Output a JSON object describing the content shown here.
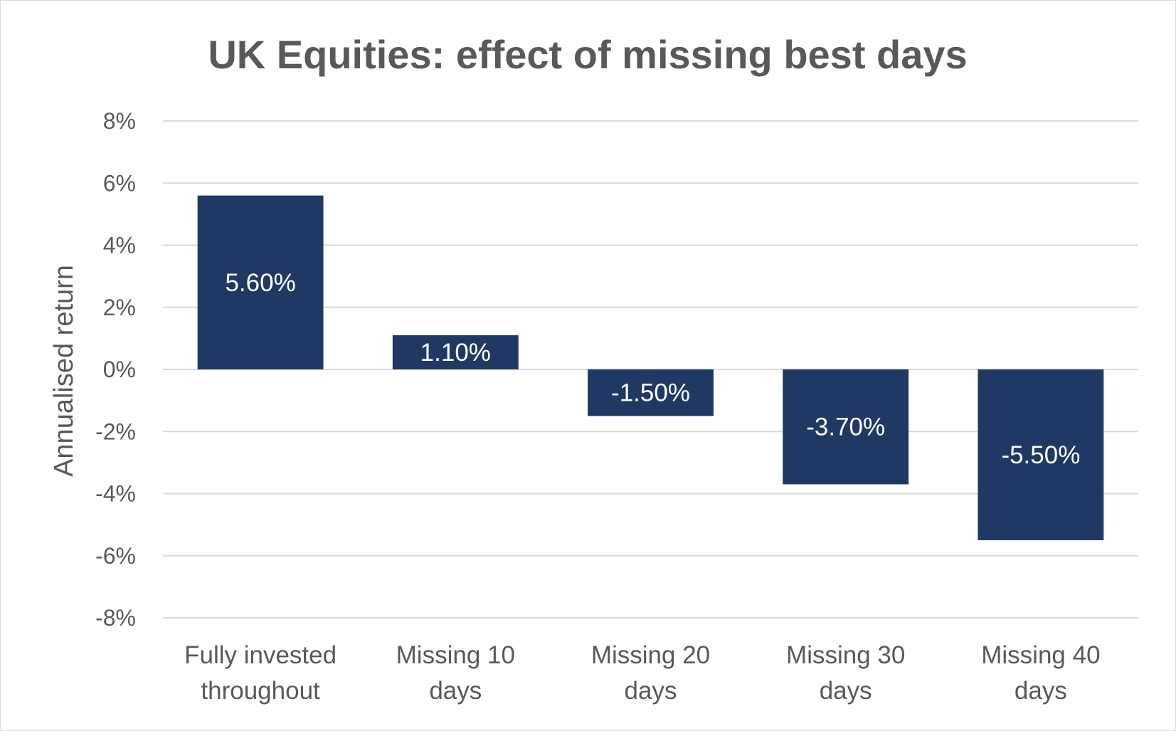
{
  "chart_data": {
    "type": "bar",
    "title": "UK Equities: effect of missing best days",
    "xlabel": "",
    "ylabel": "Annualised return",
    "categories": [
      [
        "Fully invested",
        "throughout"
      ],
      [
        "Missing 10",
        "days"
      ],
      [
        "Missing 20",
        "days"
      ],
      [
        "Missing 30",
        "days"
      ],
      [
        "Missing 40",
        "days"
      ]
    ],
    "values": [
      5.6,
      1.1,
      -1.5,
      -3.7,
      -5.5
    ],
    "data_labels": [
      "5.60%",
      "1.10%",
      "-1.50%",
      "-3.70%",
      "-5.50%"
    ],
    "y_ticks": [
      8,
      6,
      4,
      2,
      0,
      -2,
      -4,
      -6,
      -8
    ],
    "y_tick_labels": [
      "8%",
      "6%",
      "4%",
      "2%",
      "0%",
      "-2%",
      "-4%",
      "-6%",
      "-8%"
    ],
    "ylim": [
      -8,
      8
    ],
    "grid": true,
    "legend": "none",
    "bar_color": "#203864"
  }
}
